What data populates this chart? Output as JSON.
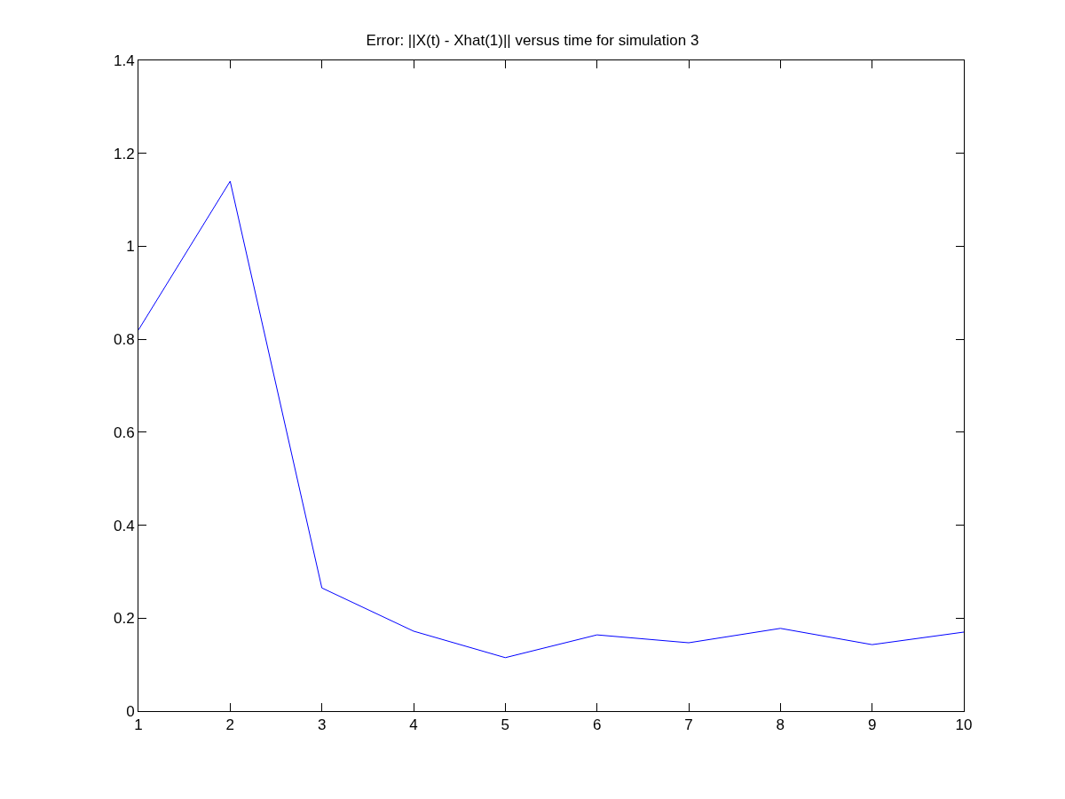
{
  "chart_data": {
    "type": "line",
    "title": "Error: ||X(t) - Xhat(1)|| versus time for simulation 3",
    "x": [
      1,
      2,
      3,
      4,
      5,
      6,
      7,
      8,
      9,
      10
    ],
    "series": [
      {
        "color": "#0000ff",
        "values": [
          0.82,
          1.14,
          0.265,
          0.172,
          0.115,
          0.164,
          0.147,
          0.178,
          0.143,
          0.17
        ]
      }
    ],
    "xlim": [
      1,
      10
    ],
    "xticks": [
      1,
      2,
      3,
      4,
      5,
      6,
      7,
      8,
      9,
      10
    ],
    "ylim": [
      0,
      1.4
    ],
    "yticks": [
      0,
      0.2,
      0.4,
      0.6,
      0.8,
      1,
      1.2,
      1.4
    ],
    "grid": false,
    "marker": "none",
    "line_style": "solid"
  }
}
